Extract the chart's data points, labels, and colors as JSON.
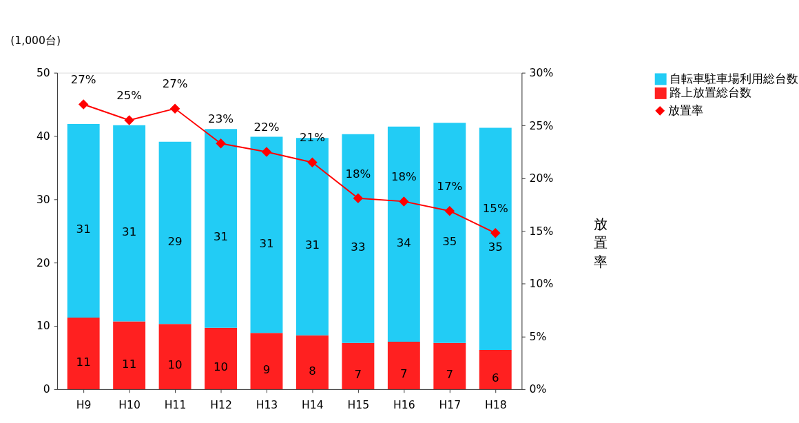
{
  "chart_data": {
    "type": "bar",
    "stacked": true,
    "ylabel": "(1,000台)",
    "y2label": "放置率",
    "categories": [
      "H9",
      "H10",
      "H11",
      "H12",
      "H13",
      "H14",
      "H15",
      "H16",
      "H17",
      "H18"
    ],
    "ylim": [
      0,
      50
    ],
    "yticks": [
      0,
      10,
      20,
      30,
      40,
      50
    ],
    "y2lim": [
      0,
      30
    ],
    "y2ticks": [
      {
        "value": 0,
        "label": "0%"
      },
      {
        "value": 5,
        "label": "5%"
      },
      {
        "value": 10,
        "label": "10%"
      },
      {
        "value": 15,
        "label": "15%"
      },
      {
        "value": 20,
        "label": "20%"
      },
      {
        "value": 25,
        "label": "25%"
      },
      {
        "value": 30,
        "label": "30%"
      }
    ],
    "series": [
      {
        "name": "路上放置総台数",
        "color": "#ff2020",
        "values": [
          11.3,
          10.7,
          10.3,
          9.7,
          8.9,
          8.5,
          7.3,
          7.5,
          7.3,
          6.2
        ],
        "value_labels": [
          "11",
          "11",
          "10",
          "10",
          "9",
          "8",
          "7",
          "7",
          "7",
          "6"
        ]
      },
      {
        "name": "自転車駐車場利用総台数",
        "color": "#22ccf5",
        "values": [
          30.6,
          31.0,
          28.8,
          31.4,
          31.0,
          31.2,
          33.0,
          34.0,
          34.8,
          35.1
        ],
        "value_labels": [
          "31",
          "31",
          "29",
          "31",
          "31",
          "31",
          "33",
          "34",
          "35",
          "35"
        ]
      },
      {
        "name": "放置率",
        "type": "line",
        "axis": "y2",
        "color": "#ff0000",
        "marker": "diamond",
        "values": [
          27.0,
          25.5,
          26.6,
          23.3,
          22.5,
          21.5,
          18.1,
          17.8,
          16.9,
          14.8
        ],
        "value_labels": [
          "27%",
          "25%",
          "27%",
          "23%",
          "22%",
          "21%",
          "18%",
          "18%",
          "17%",
          "15%"
        ]
      }
    ],
    "grid": false,
    "legend": "top right"
  }
}
